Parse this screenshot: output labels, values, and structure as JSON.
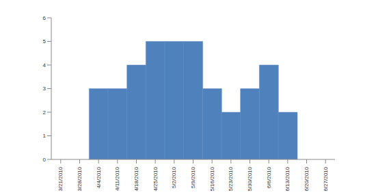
{
  "chart_data": {
    "type": "bar",
    "categories": [
      "3/21/2010",
      "3/28/2010",
      "4/4/2010",
      "4/11/2010",
      "4/18/2010",
      "4/25/2010",
      "5/2/2010",
      "5/9/2010",
      "5/16/2010",
      "5/23/2010",
      "5/30/2010",
      "6/6/2010",
      "6/13/2010",
      "6/20/2010",
      "6/27/2010"
    ],
    "values": [
      0,
      0,
      3,
      3,
      4,
      5,
      5,
      5,
      3,
      2,
      3,
      4,
      2,
      0,
      0
    ],
    "color": "#4f81bd",
    "ylim": [
      0,
      6
    ],
    "yticks": [
      0,
      1,
      2,
      3,
      4,
      5,
      6
    ],
    "grid": false
  }
}
